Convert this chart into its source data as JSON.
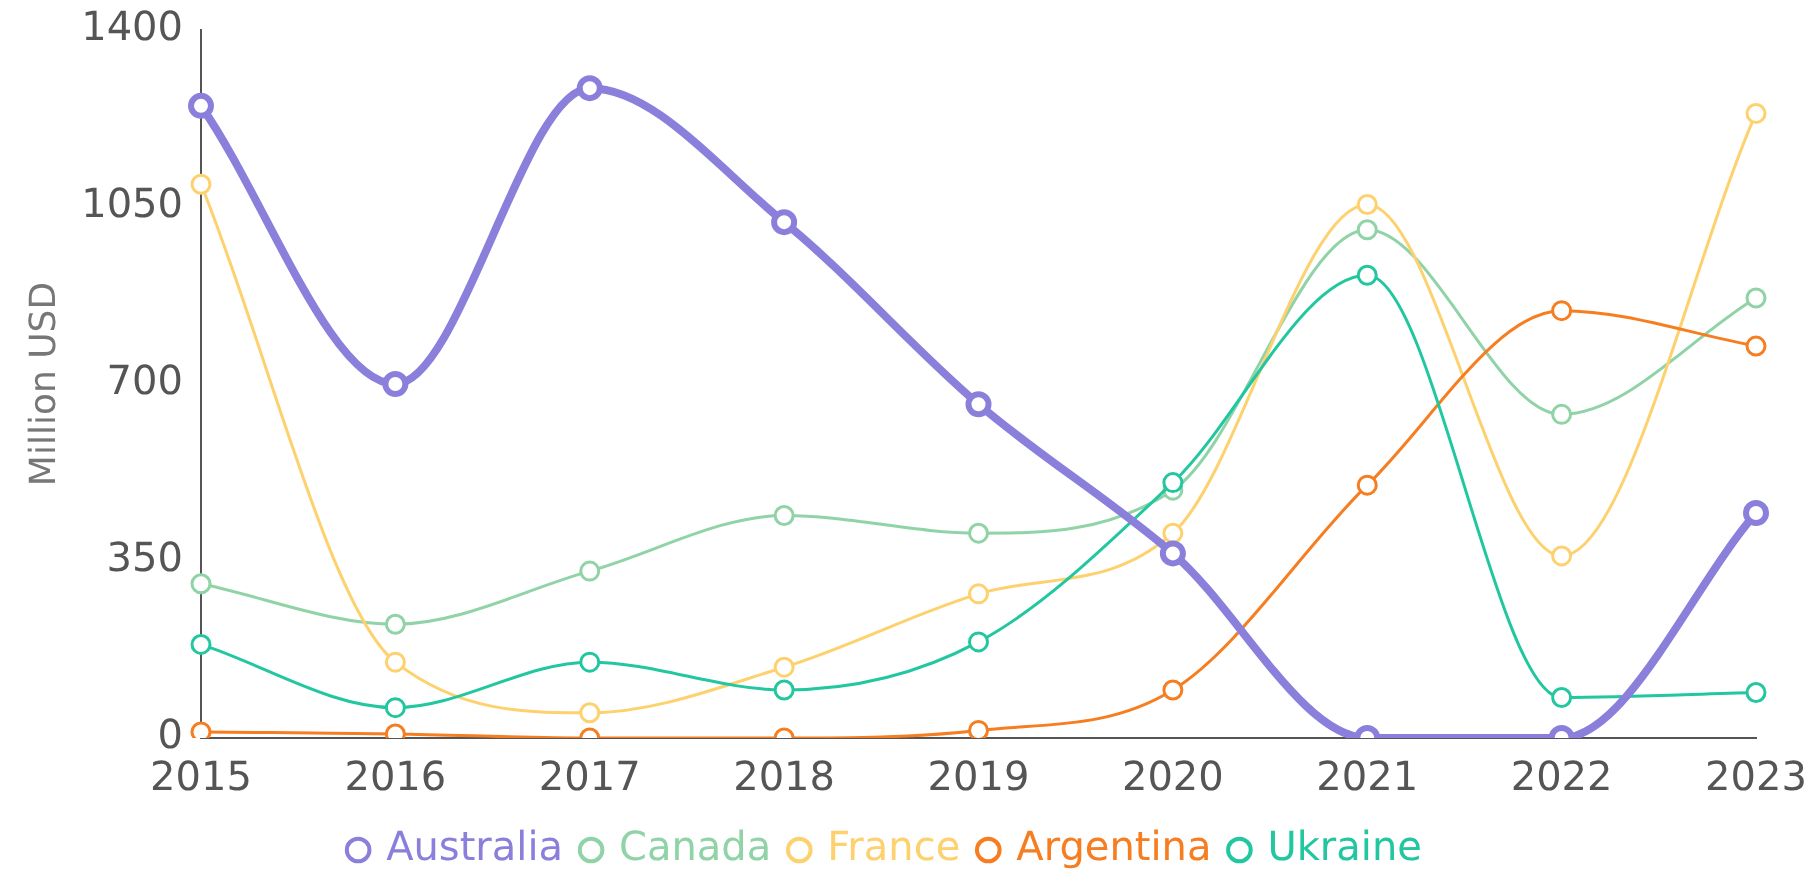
{
  "chart_data": {
    "type": "line",
    "ylabel": "Million USD",
    "categories": [
      "2015",
      "2016",
      "2017",
      "2018",
      "2019",
      "2020",
      "2021",
      "2022",
      "2023"
    ],
    "series": [
      {
        "name": "Australia",
        "color": "#8a80dc",
        "values": [
          1250,
          700,
          1285,
          1020,
          660,
          365,
          0,
          0,
          445
        ]
      },
      {
        "name": "Canada",
        "color": "#8fd3a6",
        "values": [
          305,
          225,
          330,
          440,
          405,
          490,
          1005,
          640,
          870
        ]
      },
      {
        "name": "France",
        "color": "#fdd16e",
        "values": [
          1095,
          150,
          50,
          140,
          285,
          405,
          1055,
          360,
          1235
        ]
      },
      {
        "name": "Argentina",
        "color": "#f67d20",
        "values": [
          12,
          8,
          0,
          0,
          15,
          95,
          500,
          845,
          775
        ]
      },
      {
        "name": "Ukraine",
        "color": "#22c7a0",
        "values": [
          185,
          60,
          150,
          95,
          190,
          505,
          915,
          80,
          90
        ]
      }
    ],
    "ylim": [
      0,
      1400
    ],
    "yticks": [
      0,
      350,
      700,
      1050,
      1400
    ],
    "grid": false,
    "legend": "bottom",
    "marker": "circle",
    "line_style": "solid"
  }
}
